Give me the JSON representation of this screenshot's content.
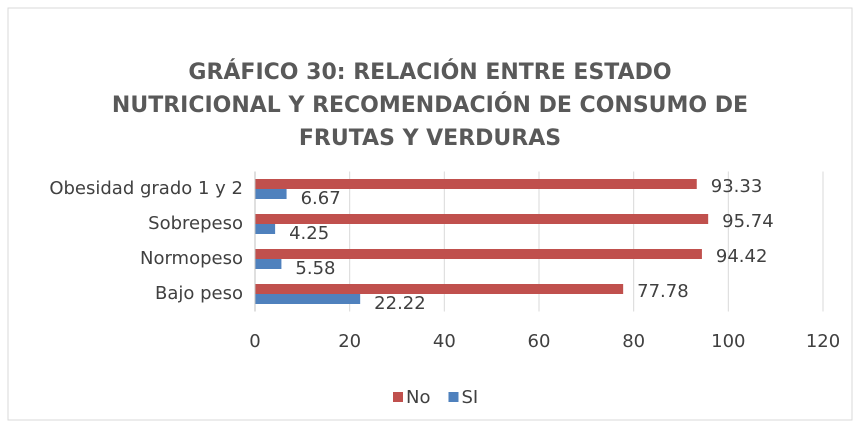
{
  "chart_data": {
    "type": "barh",
    "title": "GRÁFICO 30: RELACIÓN ENTRE ESTADO NUTRICIONAL Y RECOMENDACIÓN DE CONSUMO DE FRUTAS Y VERDURAS",
    "categories": [
      "Bajo peso",
      "Normopeso",
      "Sobrepeso",
      "Obesidad grado 1 y 2"
    ],
    "series": [
      {
        "name": "No",
        "color": "#c0504d",
        "values": [
          77.78,
          94.42,
          95.74,
          93.33
        ]
      },
      {
        "name": "SI",
        "color": "#4f81bd",
        "values": [
          22.22,
          5.58,
          4.25,
          6.67
        ]
      }
    ],
    "xlim": [
      0,
      120
    ],
    "xticks": [
      0,
      20,
      40,
      60,
      80,
      100,
      120
    ],
    "grid": true,
    "legend": "bottom"
  }
}
